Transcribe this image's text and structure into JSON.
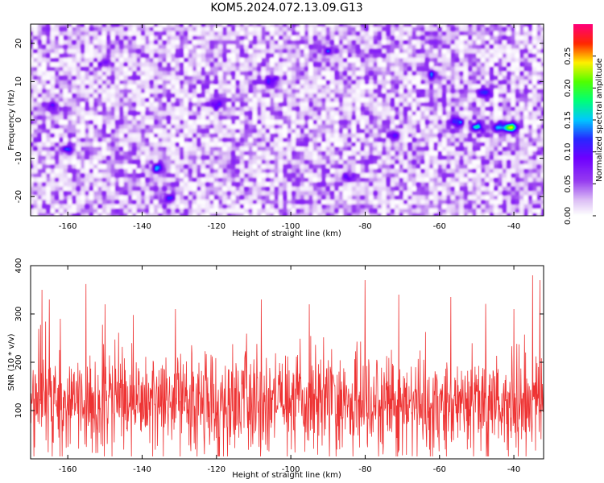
{
  "title": "KOM5.2024.072.13.09.G13",
  "chart_data": [
    {
      "type": "heatmap",
      "xlabel": "Height of straight line (km)",
      "ylabel": "Frequency (Hz)",
      "xlim": [
        -170,
        -32
      ],
      "ylim": [
        -25,
        25
      ],
      "xticks": [
        -160,
        -140,
        -120,
        -100,
        -80,
        -60,
        -40
      ],
      "yticks": [
        -20,
        -10,
        0,
        10,
        20
      ],
      "colorbar": {
        "label": "Normalized spectral amplitude",
        "range": [
          0.0,
          0.3
        ],
        "ticks": [
          0.0,
          0.05,
          0.1,
          0.15,
          0.2,
          0.25
        ],
        "tick_labels": [
          "0.00",
          "0.05",
          "0.10",
          "0.15",
          "0.20",
          "0.25"
        ],
        "colormap": "rainbow (white–violet–blue–cyan–green–yellow–red–magenta)"
      },
      "background_level": 0.03,
      "features": [
        {
          "x": -41,
          "y": -2,
          "peak": 0.22
        },
        {
          "x": -44,
          "y": -2,
          "peak": 0.13
        },
        {
          "x": -50,
          "y": -2,
          "peak": 0.12
        },
        {
          "x": -55,
          "y": -0.5,
          "peak": 0.1
        },
        {
          "x": -120,
          "y": 4,
          "peak": 0.09
        },
        {
          "x": -136,
          "y": -12.5,
          "peak": 0.1
        },
        {
          "x": -133,
          "y": -20.5,
          "peak": 0.09
        },
        {
          "x": -164,
          "y": 3,
          "peak": 0.08
        },
        {
          "x": -160,
          "y": -8,
          "peak": 0.07
        },
        {
          "x": -150,
          "y": 15,
          "peak": 0.07
        },
        {
          "x": -105,
          "y": 10,
          "peak": 0.07
        },
        {
          "x": -90,
          "y": 18,
          "peak": 0.07
        },
        {
          "x": -72,
          "y": -4,
          "peak": 0.08
        },
        {
          "x": -62,
          "y": 12,
          "peak": 0.07
        },
        {
          "x": -48,
          "y": 7,
          "peak": 0.07
        },
        {
          "x": -85,
          "y": -15,
          "peak": 0.06
        }
      ]
    },
    {
      "type": "line",
      "xlabel": "Height of straight line (km)",
      "ylabel": "SNR (10 * v/v)",
      "xlim": [
        -170,
        -32
      ],
      "ylim": [
        0,
        400
      ],
      "xticks": [
        -160,
        -140,
        -120,
        -100,
        -80,
        -60,
        -40
      ],
      "yticks": [
        100,
        200,
        300,
        400
      ],
      "series": [
        {
          "color": "#ee3333",
          "mean": 115,
          "noise_std": 55,
          "min": 5,
          "max": 390,
          "samples": 1400,
          "spikes": [
            {
              "x": -165,
              "y": 330
            },
            {
              "x": -162,
              "y": 290
            },
            {
              "x": -150,
              "y": 320
            },
            {
              "x": -131,
              "y": 310
            },
            {
              "x": -108,
              "y": 330
            },
            {
              "x": -95,
              "y": 320
            },
            {
              "x": -80,
              "y": 370
            },
            {
              "x": -71,
              "y": 340
            },
            {
              "x": -57,
              "y": 335
            },
            {
              "x": -40,
              "y": 310
            },
            {
              "x": -35,
              "y": 380
            },
            {
              "x": -33,
              "y": 370
            }
          ]
        }
      ]
    }
  ]
}
